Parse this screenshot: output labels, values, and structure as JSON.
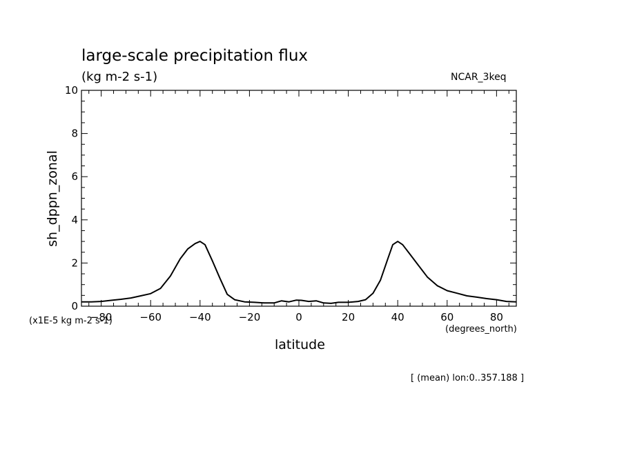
{
  "chart_data": {
    "type": "line",
    "title": "large-scale precipitation flux",
    "subtitle": "(kg m-2 s-1)",
    "model_label": "NCAR_3keq",
    "xlabel": "latitude",
    "x_units_label": "(degrees_north)",
    "ylabel": "sh_dppn_zonal",
    "y_scale_label": "(x1E-5 kg m-2 s-1)",
    "annotation": "[ (mean) lon:0..357.188 ]",
    "xlim": [
      -88,
      88
    ],
    "ylim": [
      0,
      10
    ],
    "xticks": [
      -80,
      -60,
      -40,
      -20,
      0,
      20,
      40,
      60,
      80
    ],
    "xtick_labels": [
      "-80",
      "-60",
      "-40",
      "-20",
      "0",
      "20",
      "40",
      "60",
      "80"
    ],
    "yticks": [
      0,
      2,
      4,
      6,
      8,
      10
    ],
    "ytick_labels": [
      "0",
      "2",
      "4",
      "6",
      "8",
      "10"
    ],
    "grid": false,
    "series": [
      {
        "name": "sh_dppn_zonal",
        "x": [
          -88,
          -84,
          -80,
          -76,
          -72,
          -68,
          -64,
          -60,
          -56,
          -52,
          -48,
          -45,
          -42,
          -40,
          -38,
          -35,
          -32,
          -29,
          -26,
          -22,
          -18,
          -14,
          -10,
          -7,
          -4,
          -1,
          1,
          4,
          7,
          10,
          13,
          16,
          20,
          24,
          27,
          30,
          33,
          36,
          38,
          40,
          42,
          45,
          48,
          52,
          56,
          60,
          64,
          68,
          72,
          76,
          80,
          84,
          88
        ],
        "values": [
          0.2,
          0.2,
          0.22,
          0.27,
          0.32,
          0.38,
          0.48,
          0.58,
          0.82,
          1.4,
          2.2,
          2.65,
          2.9,
          3.0,
          2.85,
          2.1,
          1.3,
          0.55,
          0.3,
          0.2,
          0.18,
          0.15,
          0.15,
          0.25,
          0.2,
          0.28,
          0.27,
          0.22,
          0.25,
          0.15,
          0.13,
          0.18,
          0.18,
          0.22,
          0.3,
          0.6,
          1.2,
          2.2,
          2.85,
          3.0,
          2.85,
          2.4,
          1.95,
          1.35,
          0.95,
          0.72,
          0.6,
          0.48,
          0.42,
          0.35,
          0.3,
          0.22,
          0.2
        ]
      }
    ]
  }
}
